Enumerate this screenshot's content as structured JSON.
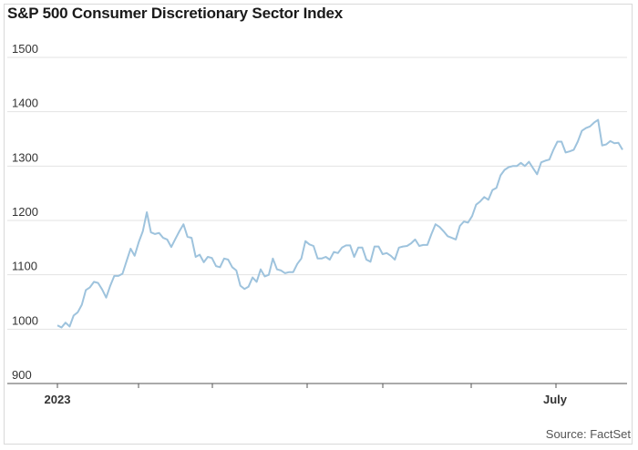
{
  "chart_data": {
    "type": "line",
    "title": "S&P 500 Consumer Discretionary Sector Index",
    "source": "Source: FactSet",
    "xlabel": "",
    "ylabel": "",
    "ylim": [
      900,
      1500
    ],
    "yticks": [
      900,
      1000,
      1100,
      1200,
      1300,
      1400,
      1500
    ],
    "xtick_labels": [
      "2023",
      "July"
    ],
    "grid": true,
    "color": "#9ec3dd",
    "series": [
      {
        "values": [
          1007,
          1003,
          1012,
          1005,
          1025,
          1031,
          1045,
          1072,
          1077,
          1087,
          1085,
          1073,
          1058,
          1080,
          1098,
          1098,
          1102,
          1125,
          1148,
          1135,
          1160,
          1180,
          1215,
          1178,
          1175,
          1177,
          1168,
          1165,
          1151,
          1166,
          1180,
          1193,
          1170,
          1168,
          1133,
          1137,
          1123,
          1133,
          1131,
          1116,
          1114,
          1130,
          1128,
          1114,
          1108,
          1080,
          1074,
          1078,
          1095,
          1087,
          1110,
          1097,
          1100,
          1130,
          1110,
          1108,
          1103,
          1105,
          1105,
          1120,
          1130,
          1162,
          1156,
          1153,
          1130,
          1130,
          1133,
          1128,
          1142,
          1140,
          1150,
          1154,
          1154,
          1133,
          1150,
          1150,
          1128,
          1124,
          1152,
          1152,
          1138,
          1140,
          1135,
          1128,
          1150,
          1152,
          1153,
          1158,
          1165,
          1153,
          1155,
          1155,
          1175,
          1193,
          1188,
          1180,
          1171,
          1168,
          1165,
          1190,
          1198,
          1196,
          1208,
          1229,
          1235,
          1243,
          1238,
          1256,
          1260,
          1283,
          1293,
          1298,
          1300,
          1300,
          1306,
          1300,
          1308,
          1296,
          1285,
          1307,
          1310,
          1312,
          1330,
          1345,
          1345,
          1325,
          1327,
          1330,
          1345,
          1365,
          1370,
          1373,
          1380,
          1385,
          1338,
          1340,
          1346,
          1342,
          1343,
          1330
        ]
      }
    ]
  }
}
